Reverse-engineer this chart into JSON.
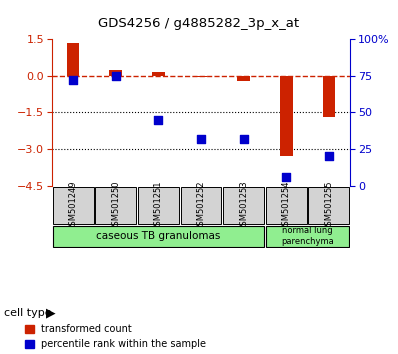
{
  "title": "GDS4256 / g4885282_3p_x_at",
  "categories": [
    "GSM501249",
    "GSM501250",
    "GSM501251",
    "GSM501252",
    "GSM501253",
    "GSM501254",
    "GSM501255"
  ],
  "transformed_count": [
    1.35,
    0.25,
    0.15,
    -0.05,
    -0.2,
    -3.3,
    -1.7
  ],
  "percentile_rank_pct": [
    72,
    75,
    45,
    32,
    32,
    6,
    20
  ],
  "ylim_left": [
    -4.5,
    1.5
  ],
  "ylim_right": [
    0,
    100
  ],
  "yticks_left": [
    1.5,
    0,
    -1.5,
    -3,
    -4.5
  ],
  "yticks_right": [
    100,
    75,
    50,
    25,
    0
  ],
  "dotted_lines": [
    -1.5,
    -3
  ],
  "bar_color": "#cc2200",
  "percentile_color": "#0000cc",
  "bar_width": 0.3,
  "legend_transformed": "transformed count",
  "legend_percentile": "percentile rank within the sample",
  "cell_type_label": "cell type",
  "ct1_label": "caseous TB granulomas",
  "ct1_samples": 5,
  "ct2_label": "normal lung\nparenchyma",
  "ct2_samples": 2,
  "green_color": "#90ee90",
  "gray_color": "#d3d3d3"
}
